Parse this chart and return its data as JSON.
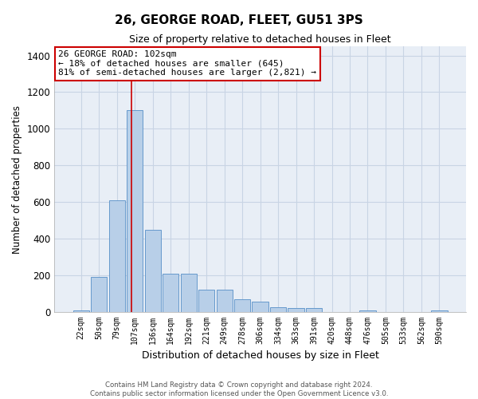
{
  "title_line1": "26, GEORGE ROAD, FLEET, GU51 3PS",
  "title_line2": "Size of property relative to detached houses in Fleet",
  "xlabel": "Distribution of detached houses by size in Fleet",
  "ylabel": "Number of detached properties",
  "categories": [
    "22sqm",
    "50sqm",
    "79sqm",
    "107sqm",
    "136sqm",
    "164sqm",
    "192sqm",
    "221sqm",
    "249sqm",
    "278sqm",
    "306sqm",
    "334sqm",
    "363sqm",
    "391sqm",
    "420sqm",
    "448sqm",
    "476sqm",
    "505sqm",
    "533sqm",
    "562sqm",
    "590sqm"
  ],
  "values": [
    8,
    190,
    610,
    1100,
    450,
    210,
    210,
    120,
    120,
    70,
    55,
    25,
    20,
    20,
    0,
    0,
    8,
    0,
    0,
    0,
    8
  ],
  "bar_color": "#b8cfe8",
  "bar_edge_color": "#6699cc",
  "ylim": [
    0,
    1450
  ],
  "yticks": [
    0,
    200,
    400,
    600,
    800,
    1000,
    1200,
    1400
  ],
  "grid_color": "#c8d4e4",
  "background_color": "#e8eef6",
  "annotation_text_line1": "26 GEORGE ROAD: 102sqm",
  "annotation_text_line2": "← 18% of detached houses are smaller (645)",
  "annotation_text_line3": "81% of semi-detached houses are larger (2,821) →",
  "footer_line1": "Contains HM Land Registry data © Crown copyright and database right 2024.",
  "footer_line2": "Contains public sector information licensed under the Open Government Licence v3.0.",
  "vline_color": "#cc0000",
  "annotation_box_edgecolor": "#cc0000"
}
